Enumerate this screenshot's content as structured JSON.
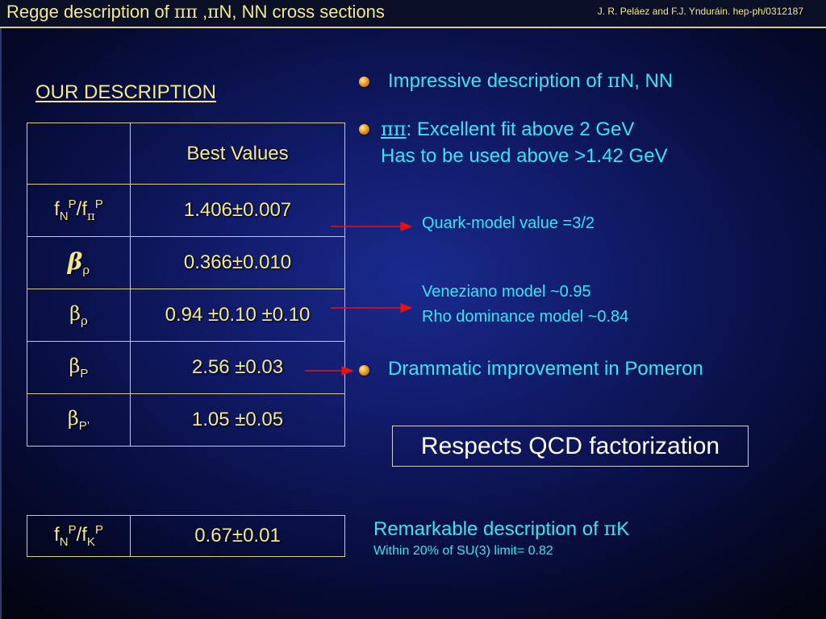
{
  "header": {
    "title_pre": "Regge description of ",
    "title_pipi": "ππ",
    "title_mid": " ,",
    "title_pi": "π",
    "title_post": "N, NN cross sections",
    "credit": "J. R. Peláez and F.J. Ynduráin. hep-ph/0312187"
  },
  "section_title": "OUR DESCRIPTION",
  "main_table": {
    "header_value": "Best Values",
    "rows": [
      {
        "label_f": "f",
        "label_sub1": "N",
        "label_sup1": "P",
        "label_slash": "/f",
        "label_sub2": "π",
        "label_sup2": "P",
        "value": "1.406±0.007"
      },
      {
        "label_beta": "β",
        "label_sub": "ρ",
        "value": "0.366±0.010"
      },
      {
        "label_beta": "β",
        "label_sub": "ρ",
        "value": "0.94 ±0.10 ±0.10"
      },
      {
        "label_beta": "β",
        "label_sub": "P",
        "value": "2.56 ±0.03"
      },
      {
        "label_beta": "β",
        "label_sub": "P’",
        "value": "1.05 ±0.05"
      }
    ]
  },
  "pk_table": {
    "label_f": "f",
    "label_sub1": "N",
    "label_sup1": "P",
    "label_slash": "/f",
    "label_sub2": "K",
    "label_sup2": "P",
    "value": "0.67±0.01"
  },
  "notes": {
    "impressive_pre": "Impressive description of ",
    "impressive_pi": "π",
    "impressive_post": "N, NN",
    "pipi_sym": "ππ",
    "pipi_text": ": Excellent fit above 2 GeV",
    "pipi_line2": "Has to be used above >1.42 GeV",
    "quark_model": "Quark-model value  =3/2",
    "veneziano": "Veneziano model ~0.95",
    "rho_dominance": "Rho dominance model ~0.84",
    "drammatic": "Drammatic improvement in Pomeron",
    "qcd": "Respects QCD factorization",
    "remarkable_pre": "Remarkable description of ",
    "remarkable_pi": "π",
    "remarkable_post": "K",
    "su3": "Within 20% of SU(3) limit= 0.82"
  },
  "colors": {
    "accent_yellow": "#f3e98a",
    "accent_cyan": "#35e6f2",
    "arrow_red": "#e81010"
  },
  "icons": [
    "bullet-ball-icon",
    "arrow-right-icon"
  ]
}
